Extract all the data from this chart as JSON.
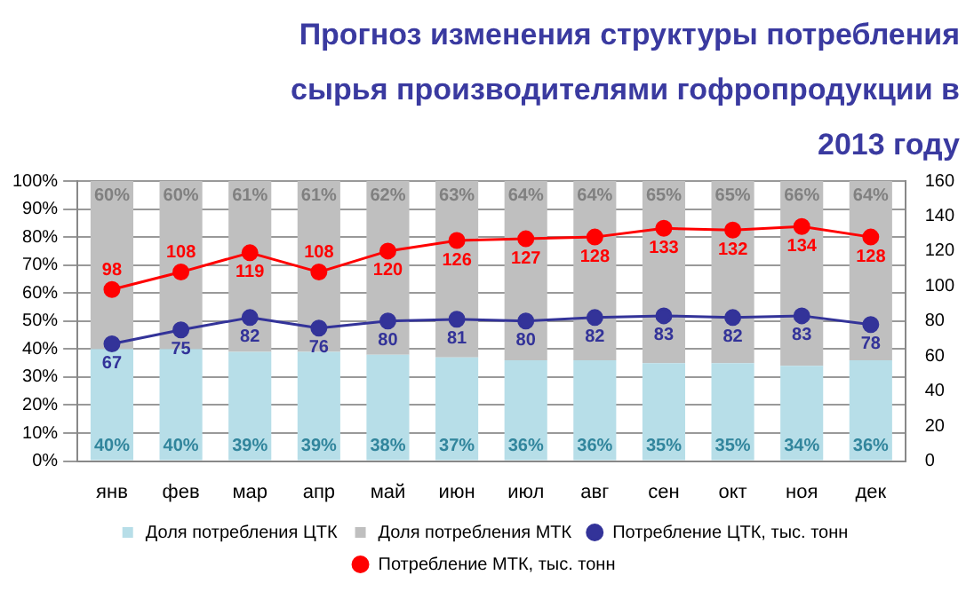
{
  "chart_data": {
    "type": "bar",
    "title": "Прогноз изменения структуры потребления сырья производителями гофропродукции в 2013 году",
    "categories": [
      "янв",
      "фев",
      "мар",
      "апр",
      "май",
      "июн",
      "июл",
      "авг",
      "сен",
      "окт",
      "ноя",
      "дек"
    ],
    "stacked": true,
    "grid": "y",
    "legend": "bottom",
    "marker": "circle",
    "ylim": [
      0,
      100
    ],
    "yticks": [
      {
        "value": 0,
        "label": "0%"
      },
      {
        "value": 10,
        "label": "10%"
      },
      {
        "value": 20,
        "label": "20%"
      },
      {
        "value": 30,
        "label": "30%"
      },
      {
        "value": 40,
        "label": "40%"
      },
      {
        "value": 50,
        "label": "50%"
      },
      {
        "value": 60,
        "label": "60%"
      },
      {
        "value": 70,
        "label": "70%"
      },
      {
        "value": 80,
        "label": "80%"
      },
      {
        "value": 90,
        "label": "90%"
      },
      {
        "value": 100,
        "label": "100%"
      }
    ],
    "y2lim": [
      0,
      160
    ],
    "y2ticks": [
      0,
      20,
      40,
      60,
      80,
      100,
      120,
      140,
      160
    ],
    "series": [
      {
        "name": "Доля потребления ЦТК",
        "color": "#b7dee8",
        "values": [
          40,
          40,
          39,
          39,
          38,
          37,
          36,
          36,
          35,
          35,
          34,
          36
        ],
        "value_labels": [
          "40%",
          "40%",
          "39%",
          "39%",
          "38%",
          "37%",
          "36%",
          "36%",
          "35%",
          "35%",
          "34%",
          "36%"
        ]
      },
      {
        "name": "Доля потребления МТК",
        "color": "#bfbfbf",
        "values": [
          60,
          60,
          61,
          61,
          62,
          63,
          64,
          64,
          65,
          65,
          66,
          64
        ],
        "value_labels": [
          "60%",
          "60%",
          "61%",
          "61%",
          "62%",
          "63%",
          "64%",
          "64%",
          "65%",
          "65%",
          "66%",
          "64%"
        ]
      },
      {
        "name": "Потребление ЦТК, тыс. тонн",
        "type": "line",
        "axis": "y2",
        "color": "#333399",
        "values": [
          67,
          75,
          82,
          76,
          80,
          81,
          80,
          82,
          83,
          82,
          83,
          78
        ],
        "value_labels": [
          "67",
          "75",
          "82",
          "76",
          "80",
          "81",
          "80",
          "82",
          "83",
          "82",
          "83",
          "78"
        ]
      },
      {
        "name": "Потребление МТК, тыс. тонн",
        "type": "line",
        "axis": "y2",
        "color": "#ff0000",
        "values": [
          98,
          108,
          119,
          108,
          120,
          126,
          127,
          128,
          133,
          132,
          134,
          128
        ],
        "value_labels": [
          "98",
          "108",
          "119",
          "108",
          "120",
          "126",
          "127",
          "128",
          "133",
          "132",
          "134",
          "128"
        ]
      }
    ]
  }
}
